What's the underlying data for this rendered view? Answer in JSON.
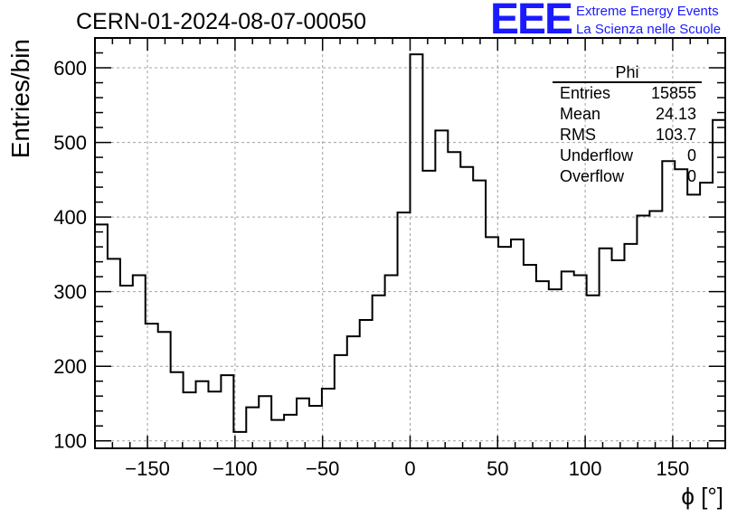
{
  "header": {
    "title": "CERN-01-2024-08-07-00050",
    "logo": "EEE",
    "logo_line1": "Extreme Energy Events",
    "logo_line2": "La Scienza nelle Scuole"
  },
  "stats_box": {
    "title": "Phi",
    "rows": [
      {
        "label": "Entries",
        "value": "15855"
      },
      {
        "label": "Mean",
        "value": "24.13"
      },
      {
        "label": "RMS",
        "value": "103.7"
      },
      {
        "label": "Underflow",
        "value": "0"
      },
      {
        "label": "Overflow",
        "value": "0"
      }
    ]
  },
  "chart_data": {
    "type": "histogram",
    "xlabel": "ϕ [°]",
    "ylabel": "Entries/bin",
    "xlim": [
      -180,
      180
    ],
    "ylim": [
      90,
      640
    ],
    "grid": true,
    "bin_width": 7.2,
    "x_ticks": [
      -150,
      -100,
      -50,
      0,
      50,
      100,
      150
    ],
    "y_ticks": [
      100,
      200,
      300,
      400,
      500,
      600
    ],
    "values": [
      390,
      344,
      308,
      322,
      257,
      246,
      192,
      165,
      180,
      166,
      188,
      112,
      145,
      160,
      128,
      135,
      157,
      147,
      170,
      215,
      240,
      262,
      295,
      322,
      406,
      618,
      462,
      516,
      487,
      467,
      449,
      373,
      360,
      370,
      336,
      314,
      303,
      327,
      322,
      295,
      358,
      342,
      364,
      402,
      408,
      475,
      464,
      430,
      446,
      530
    ],
    "line_color": "#000000",
    "grid_color": "#a0a0a0"
  }
}
